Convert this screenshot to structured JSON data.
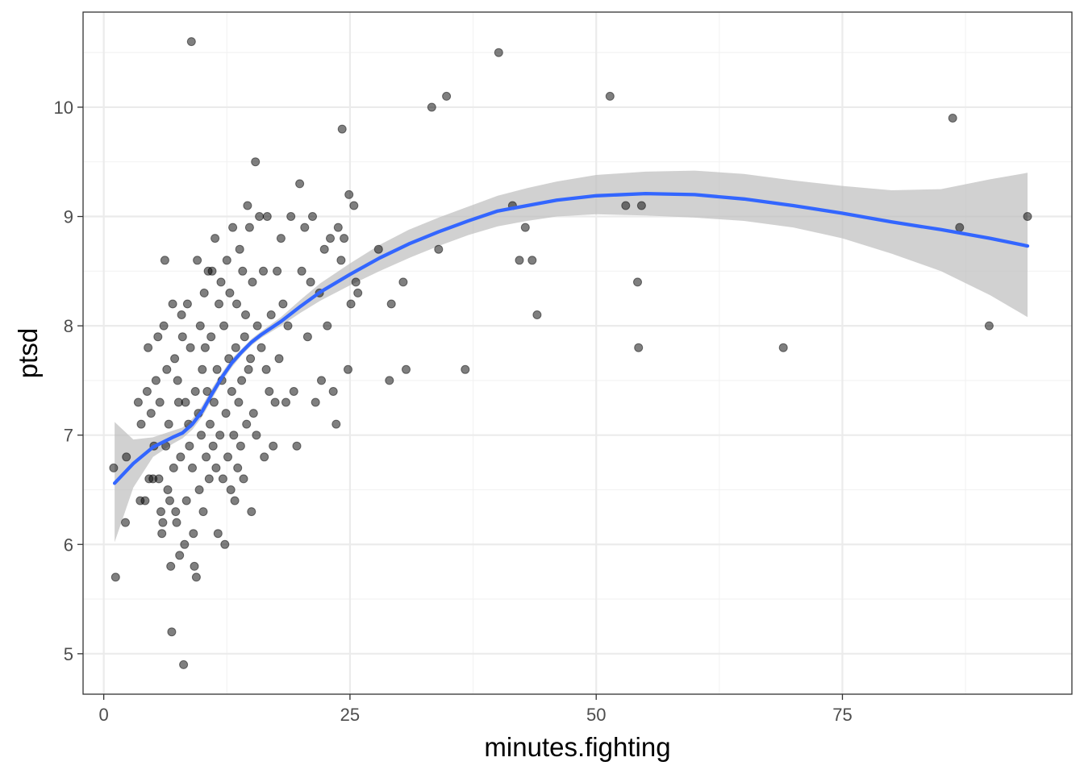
{
  "chart_data": {
    "type": "scatter",
    "title": "",
    "xlabel": "minutes.fighting",
    "ylabel": "ptsd",
    "xlim": [
      -2.1,
      98.3
    ],
    "ylim": [
      4.63,
      10.87
    ],
    "x_ticks": [
      0,
      25,
      50,
      75
    ],
    "x_tick_labels": [
      "0",
      "25",
      "50",
      "75"
    ],
    "y_ticks": [
      5,
      6,
      7,
      8,
      9,
      10
    ],
    "y_tick_labels": [
      "5",
      "6",
      "7",
      "8",
      "9",
      "10"
    ],
    "grid": true,
    "legend": "none",
    "colors": {
      "points": "#000000",
      "point_opacity": 0.5,
      "smooth_line": "#3366FF",
      "confidence_band": "#BEBEBE",
      "panel_border": "#333333",
      "grid_major": "#EBEBEB",
      "grid_minor": "#F2F2F2"
    },
    "points": [
      [
        1,
        6.7
      ],
      [
        1.2,
        5.7
      ],
      [
        2.2,
        6.2
      ],
      [
        2.3,
        6.8
      ],
      [
        3.5,
        7.3
      ],
      [
        3.7,
        6.4
      ],
      [
        3.8,
        7.1
      ],
      [
        4.2,
        6.4
      ],
      [
        4.4,
        7.4
      ],
      [
        4.5,
        7.8
      ],
      [
        4.6,
        6.6
      ],
      [
        4.8,
        7.2
      ],
      [
        5,
        6.6
      ],
      [
        5.1,
        6.9
      ],
      [
        5.3,
        7.5
      ],
      [
        5.5,
        7.9
      ],
      [
        5.6,
        6.6
      ],
      [
        5.7,
        7.3
      ],
      [
        5.8,
        6.3
      ],
      [
        5.9,
        6.1
      ],
      [
        6,
        6.2
      ],
      [
        6.1,
        8
      ],
      [
        6.2,
        8.6
      ],
      [
        6.3,
        6.9
      ],
      [
        6.4,
        7.6
      ],
      [
        6.5,
        6.5
      ],
      [
        6.6,
        7.1
      ],
      [
        6.7,
        6.4
      ],
      [
        6.8,
        5.8
      ],
      [
        6.9,
        5.2
      ],
      [
        7,
        8.2
      ],
      [
        7.1,
        6.7
      ],
      [
        7.2,
        7.7
      ],
      [
        7.3,
        6.3
      ],
      [
        7.4,
        6.2
      ],
      [
        7.5,
        7.5
      ],
      [
        7.6,
        7.3
      ],
      [
        7.7,
        5.9
      ],
      [
        7.8,
        6.8
      ],
      [
        7.9,
        8.1
      ],
      [
        8,
        7.9
      ],
      [
        8.1,
        4.9
      ],
      [
        8.2,
        6
      ],
      [
        8.3,
        7.3
      ],
      [
        8.4,
        6.4
      ],
      [
        8.5,
        8.2
      ],
      [
        8.6,
        7.1
      ],
      [
        8.7,
        6.9
      ],
      [
        8.8,
        7.8
      ],
      [
        8.9,
        10.6
      ],
      [
        9,
        6.7
      ],
      [
        9.1,
        6.1
      ],
      [
        9.2,
        5.8
      ],
      [
        9.3,
        7.4
      ],
      [
        9.4,
        5.7
      ],
      [
        9.5,
        8.6
      ],
      [
        9.6,
        7.2
      ],
      [
        9.7,
        6.5
      ],
      [
        9.8,
        8
      ],
      [
        9.9,
        7
      ],
      [
        10,
        7.6
      ],
      [
        10.1,
        6.3
      ],
      [
        10.2,
        8.3
      ],
      [
        10.3,
        7.8
      ],
      [
        10.4,
        6.8
      ],
      [
        10.5,
        7.4
      ],
      [
        10.6,
        8.5
      ],
      [
        10.7,
        6.6
      ],
      [
        10.8,
        7.1
      ],
      [
        10.9,
        7.9
      ],
      [
        11,
        8.5
      ],
      [
        11.1,
        6.9
      ],
      [
        11.2,
        7.3
      ],
      [
        11.3,
        8.8
      ],
      [
        11.4,
        6.7
      ],
      [
        11.5,
        7.6
      ],
      [
        11.6,
        6.1
      ],
      [
        11.7,
        8.2
      ],
      [
        11.8,
        7
      ],
      [
        11.9,
        8.4
      ],
      [
        12,
        7.5
      ],
      [
        12.1,
        6.6
      ],
      [
        12.2,
        8
      ],
      [
        12.3,
        6
      ],
      [
        12.4,
        7.2
      ],
      [
        12.5,
        8.6
      ],
      [
        12.6,
        6.8
      ],
      [
        12.7,
        7.7
      ],
      [
        12.8,
        8.3
      ],
      [
        12.9,
        6.5
      ],
      [
        13,
        7.4
      ],
      [
        13.1,
        8.9
      ],
      [
        13.2,
        7
      ],
      [
        13.3,
        6.4
      ],
      [
        13.4,
        7.8
      ],
      [
        13.5,
        8.2
      ],
      [
        13.6,
        6.7
      ],
      [
        13.7,
        7.3
      ],
      [
        13.8,
        8.7
      ],
      [
        13.9,
        6.9
      ],
      [
        14,
        7.5
      ],
      [
        14.1,
        8.5
      ],
      [
        14.2,
        6.6
      ],
      [
        14.3,
        7.9
      ],
      [
        14.4,
        8.1
      ],
      [
        14.5,
        7.1
      ],
      [
        14.6,
        9.1
      ],
      [
        14.7,
        7.6
      ],
      [
        14.8,
        8.9
      ],
      [
        14.9,
        7.7
      ],
      [
        15,
        6.3
      ],
      [
        15.1,
        8.4
      ],
      [
        15.2,
        7.2
      ],
      [
        15.4,
        9.5
      ],
      [
        15.5,
        7
      ],
      [
        15.6,
        8
      ],
      [
        15.8,
        9
      ],
      [
        16,
        7.8
      ],
      [
        16.2,
        8.5
      ],
      [
        16.3,
        6.8
      ],
      [
        16.5,
        7.6
      ],
      [
        16.6,
        9
      ],
      [
        16.8,
        7.4
      ],
      [
        17,
        8.1
      ],
      [
        17.2,
        6.9
      ],
      [
        17.4,
        7.3
      ],
      [
        17.6,
        8.5
      ],
      [
        17.8,
        7.7
      ],
      [
        18,
        8.8
      ],
      [
        18.2,
        8.2
      ],
      [
        18.5,
        7.3
      ],
      [
        18.7,
        8
      ],
      [
        19,
        9
      ],
      [
        19.3,
        7.4
      ],
      [
        19.6,
        6.9
      ],
      [
        19.9,
        9.3
      ],
      [
        20.1,
        8.5
      ],
      [
        20.4,
        8.9
      ],
      [
        20.7,
        7.9
      ],
      [
        21,
        8.4
      ],
      [
        21.2,
        9
      ],
      [
        21.5,
        7.3
      ],
      [
        21.9,
        8.3
      ],
      [
        22.1,
        7.5
      ],
      [
        22.4,
        8.7
      ],
      [
        22.7,
        8
      ],
      [
        23,
        8.8
      ],
      [
        23.3,
        7.4
      ],
      [
        23.6,
        7.1
      ],
      [
        23.8,
        8.9
      ],
      [
        24.1,
        8.6
      ],
      [
        24.2,
        9.8
      ],
      [
        24.4,
        8.8
      ],
      [
        24.8,
        7.6
      ],
      [
        24.9,
        9.2
      ],
      [
        25.1,
        8.2
      ],
      [
        25.4,
        9.1
      ],
      [
        25.6,
        8.4
      ],
      [
        25.8,
        8.3
      ],
      [
        27.9,
        8.7
      ],
      [
        29,
        7.5
      ],
      [
        29.2,
        8.2
      ],
      [
        30.4,
        8.4
      ],
      [
        30.7,
        7.6
      ],
      [
        33.3,
        10
      ],
      [
        34,
        8.7
      ],
      [
        34.8,
        10.1
      ],
      [
        36.7,
        7.6
      ],
      [
        40.1,
        10.5
      ],
      [
        41.5,
        9.1
      ],
      [
        42.2,
        8.6
      ],
      [
        42.8,
        8.9
      ],
      [
        43.5,
        8.6
      ],
      [
        44,
        8.1
      ],
      [
        51.4,
        10.1
      ],
      [
        53,
        9.1
      ],
      [
        54.2,
        8.4
      ],
      [
        54.3,
        7.8
      ],
      [
        54.6,
        9.1
      ],
      [
        69,
        7.8
      ],
      [
        86.2,
        9.9
      ],
      [
        86.9,
        8.9
      ],
      [
        89.9,
        8
      ],
      [
        93.8,
        9
      ]
    ],
    "smooth": {
      "x": [
        1.1,
        3,
        5,
        7,
        8,
        9,
        10,
        11,
        12,
        13,
        14,
        15,
        16,
        18,
        20,
        22,
        25,
        28,
        31,
        34,
        37,
        40,
        43,
        46,
        50,
        55,
        60,
        65,
        70,
        75,
        80,
        85,
        90,
        93.8
      ],
      "y": [
        6.56,
        6.74,
        6.89,
        6.98,
        7.02,
        7.1,
        7.22,
        7.38,
        7.53,
        7.66,
        7.76,
        7.85,
        7.92,
        8.04,
        8.18,
        8.31,
        8.47,
        8.62,
        8.75,
        8.86,
        8.96,
        9.05,
        9.1,
        9.15,
        9.19,
        9.21,
        9.2,
        9.16,
        9.1,
        9.03,
        8.95,
        8.88,
        8.8,
        8.73
      ],
      "lower": [
        6.02,
        6.52,
        6.8,
        6.92,
        6.97,
        7.05,
        7.17,
        7.33,
        7.49,
        7.62,
        7.73,
        7.82,
        7.89,
        8,
        8.12,
        8.23,
        8.37,
        8.5,
        8.62,
        8.73,
        8.83,
        8.91,
        8.96,
        9,
        9.02,
        9.01,
        8.99,
        8.96,
        8.9,
        8.8,
        8.66,
        8.5,
        8.28,
        8.08
      ],
      "upper": [
        7.12,
        6.96,
        6.98,
        7.04,
        7.07,
        7.15,
        7.27,
        7.43,
        7.57,
        7.7,
        7.79,
        7.88,
        7.95,
        8.08,
        8.24,
        8.39,
        8.57,
        8.74,
        8.88,
        8.99,
        9.09,
        9.19,
        9.26,
        9.32,
        9.38,
        9.41,
        9.42,
        9.39,
        9.33,
        9.28,
        9.24,
        9.25,
        9.34,
        9.4
      ]
    }
  }
}
